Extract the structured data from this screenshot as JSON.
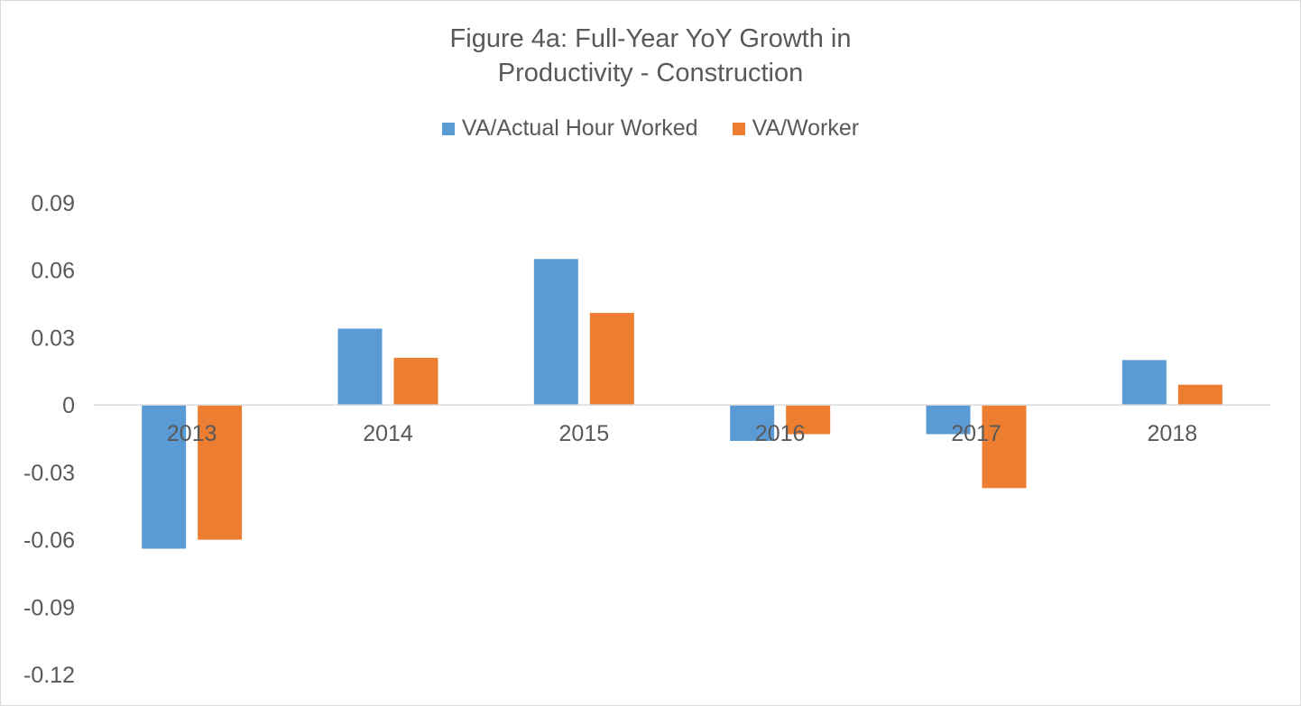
{
  "chart_data": {
    "type": "bar",
    "title_line1": "Figure 4a: Full-Year YoY Growth in",
    "title_line2": "Productivity - Construction",
    "xlabel": "",
    "ylabel": "",
    "categories": [
      "2013",
      "2014",
      "2015",
      "2016",
      "2017",
      "2018"
    ],
    "series": [
      {
        "name": "VA/Actual Hour Worked",
        "color": "#5B9BD5",
        "values": [
          -0.064,
          0.034,
          0.065,
          -0.016,
          -0.013,
          0.02
        ]
      },
      {
        "name": "VA/Worker",
        "color": "#ED7D31",
        "values": [
          -0.06,
          0.021,
          0.041,
          -0.013,
          -0.037,
          0.009
        ]
      }
    ],
    "ylim": [
      -0.12,
      0.09
    ],
    "yticks": [
      "0.09",
      "0.06",
      "0.03",
      "0",
      "-0.03",
      "-0.06",
      "-0.09",
      "-0.12"
    ],
    "ytick_values": [
      0.09,
      0.06,
      0.03,
      0,
      -0.03,
      -0.06,
      -0.09,
      -0.12
    ],
    "gridlines": false,
    "legend_position": "top"
  }
}
